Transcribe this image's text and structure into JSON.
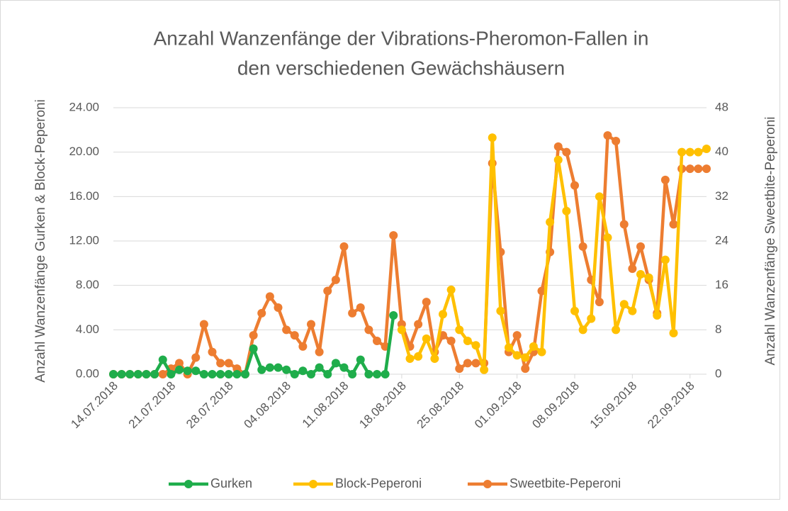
{
  "chart_data": {
    "type": "line",
    "title": [
      "Anzahl Wanzenfänge der Vibrations-Pheromon-Fallen in",
      "den verschiedenen Gewächshäusern"
    ],
    "y_label": "Anzahl Wanzenfänge Gurken & Block-Peperoni",
    "y2_label": "Anzahl Wanzenfänge Sweetbite-Peperoni",
    "x": [
      "2018-07-14",
      "2018-07-15",
      "2018-07-16",
      "2018-07-17",
      "2018-07-18",
      "2018-07-19",
      "2018-07-20",
      "2018-07-21",
      "2018-07-22",
      "2018-07-23",
      "2018-07-24",
      "2018-07-25",
      "2018-07-26",
      "2018-07-27",
      "2018-07-28",
      "2018-07-29",
      "2018-07-30",
      "2018-07-31",
      "2018-08-01",
      "2018-08-02",
      "2018-08-03",
      "2018-08-04",
      "2018-08-05",
      "2018-08-06",
      "2018-08-07",
      "2018-08-08",
      "2018-08-09",
      "2018-08-10",
      "2018-08-11",
      "2018-08-12",
      "2018-08-13",
      "2018-08-14",
      "2018-08-15",
      "2018-08-16",
      "2018-08-17",
      "2018-08-18",
      "2018-08-19",
      "2018-08-20",
      "2018-08-21",
      "2018-08-22",
      "2018-08-23",
      "2018-08-24",
      "2018-08-25",
      "2018-08-26",
      "2018-08-27",
      "2018-08-28",
      "2018-08-29",
      "2018-08-30",
      "2018-08-31",
      "2018-09-01",
      "2018-09-02",
      "2018-09-03",
      "2018-09-04",
      "2018-09-05",
      "2018-09-06",
      "2018-09-07",
      "2018-09-08",
      "2018-09-09",
      "2018-09-10",
      "2018-09-11",
      "2018-09-12",
      "2018-09-13",
      "2018-09-14",
      "2018-09-15",
      "2018-09-16",
      "2018-09-17",
      "2018-09-18",
      "2018-09-19",
      "2018-09-20",
      "2018-09-21",
      "2018-09-22",
      "2018-09-23",
      "2018-09-24"
    ],
    "xlim": [
      "2018-07-14",
      "2018-09-24"
    ],
    "xticks": [
      {
        "value": "2018-07-14",
        "label": "14.07.2018"
      },
      {
        "value": "2018-07-21",
        "label": "21.07.2018"
      },
      {
        "value": "2018-07-28",
        "label": "28.07.2018"
      },
      {
        "value": "2018-08-04",
        "label": "04.08.2018"
      },
      {
        "value": "2018-08-11",
        "label": "11.08.2018"
      },
      {
        "value": "2018-08-18",
        "label": "18.08.2018"
      },
      {
        "value": "2018-08-25",
        "label": "25.08.2018"
      },
      {
        "value": "2018-09-01",
        "label": "01.09.2018"
      },
      {
        "value": "2018-09-08",
        "label": "08.09.2018"
      },
      {
        "value": "2018-09-15",
        "label": "15.09.2018"
      },
      {
        "value": "2018-09-22",
        "label": "22.09.2018"
      }
    ],
    "ylim": [
      0,
      24
    ],
    "yticks": [
      {
        "value": 0,
        "label": "0.00"
      },
      {
        "value": 4,
        "label": "4.00"
      },
      {
        "value": 8,
        "label": "8.00"
      },
      {
        "value": 12,
        "label": "12.00"
      },
      {
        "value": 16,
        "label": "16.00"
      },
      {
        "value": 20,
        "label": "20.00"
      },
      {
        "value": 24,
        "label": "24.00"
      }
    ],
    "y2lim": [
      0,
      48
    ],
    "y2ticks": [
      0,
      8,
      16,
      24,
      32,
      40,
      48
    ],
    "grid": true,
    "legend": "bottom",
    "series": [
      {
        "name": "Gurken",
        "color": "#1fad4b",
        "values": [
          0,
          0,
          0,
          0,
          0,
          0,
          1.3,
          0,
          0.4,
          0.3,
          0.3,
          0,
          0,
          0,
          0,
          0,
          0,
          2.3,
          0.4,
          0.6,
          0.6,
          0.4,
          0,
          0.3,
          0,
          0.6,
          0,
          1.0,
          0.6,
          0,
          1.3,
          0,
          0,
          0,
          5.3,
          null,
          null,
          null,
          null,
          null,
          null,
          null,
          null,
          null,
          null,
          null,
          null,
          null,
          null,
          null,
          null,
          null,
          null,
          null,
          null,
          null,
          null,
          null,
          null,
          null,
          null,
          null,
          null,
          null,
          null,
          null,
          null,
          null,
          null,
          null,
          null,
          null,
          null
        ]
      },
      {
        "name": "Block-Peperoni",
        "color": "#ffc000",
        "values": [
          null,
          null,
          null,
          null,
          null,
          null,
          null,
          null,
          null,
          null,
          null,
          null,
          null,
          null,
          null,
          null,
          null,
          null,
          null,
          null,
          null,
          null,
          null,
          null,
          null,
          null,
          null,
          null,
          null,
          null,
          null,
          null,
          null,
          null,
          null,
          4.0,
          1.4,
          1.6,
          3.2,
          1.4,
          5.4,
          7.6,
          4.0,
          3.0,
          2.6,
          0.4,
          21.3,
          5.7,
          2.4,
          1.7,
          1.5,
          2.5,
          2.0,
          13.7,
          19.3,
          14.7,
          5.7,
          4.0,
          5.0,
          16.0,
          12.3,
          4.0,
          6.3,
          5.7,
          9.0,
          8.7,
          5.3,
          10.3,
          3.7,
          20.0,
          20.0,
          20.0,
          20.3
        ]
      },
      {
        "name": "Sweetbite-Peperoni",
        "color": "#ed7d31",
        "axis": "y2",
        "values": [
          0,
          0,
          0,
          0,
          0,
          0,
          0,
          1,
          2,
          0,
          3,
          9,
          4,
          2,
          2,
          1,
          0,
          7,
          11,
          14,
          12,
          8,
          7,
          5,
          9,
          4,
          15,
          17,
          23,
          11,
          12,
          8,
          6,
          5,
          25,
          9,
          5,
          9,
          13,
          4,
          7,
          6,
          1,
          2,
          2,
          2,
          38,
          22,
          4,
          7,
          1,
          4,
          15,
          22,
          41,
          40,
          34,
          23,
          17,
          13,
          43,
          42,
          27,
          19,
          23,
          17,
          11,
          35,
          27,
          37,
          37,
          37,
          37
        ]
      }
    ]
  }
}
